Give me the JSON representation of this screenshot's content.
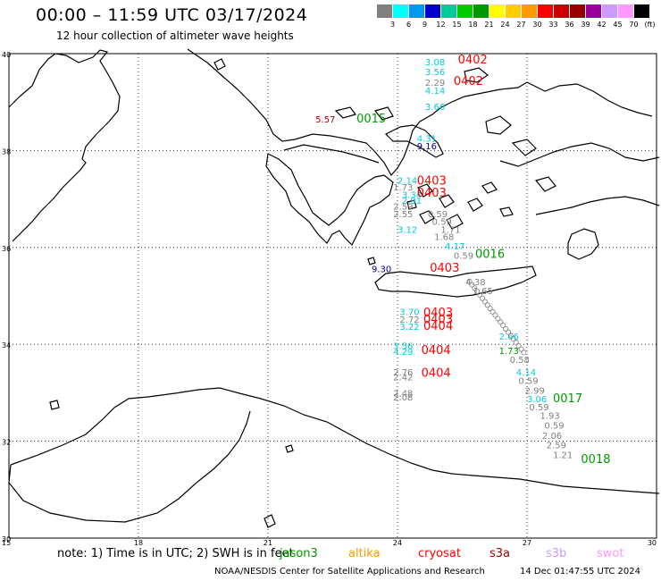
{
  "header": {
    "title": "00:00 – 11:59 UTC 03/17/2024",
    "subtitle": "12 hour collection of altimeter wave heights"
  },
  "legend": {
    "unit": "(ft)",
    "colors": [
      "#808080",
      "#00ffff",
      "#0099ee",
      "#0000cc",
      "#00cc99",
      "#00cc00",
      "#009900",
      "#ffff00",
      "#ffcc00",
      "#ff9900",
      "#ff0000",
      "#cc0000",
      "#990000",
      "#990099",
      "#cc99ff",
      "#ff99ff",
      "#000000"
    ],
    "labels": [
      "3",
      "6",
      "9",
      "12",
      "15",
      "18",
      "21",
      "24",
      "27",
      "30",
      "33",
      "36",
      "39",
      "42",
      "45",
      "70"
    ]
  },
  "axes": {
    "lat_labels": [
      "40",
      "38",
      "36",
      "34",
      "32",
      "30"
    ],
    "lon_labels": [
      "15",
      "18",
      "21",
      "24",
      "27",
      "30"
    ]
  },
  "observations": [
    {
      "t": "3.08",
      "lon": 24.64,
      "lat": 39.76,
      "c": "#00ccdd"
    },
    {
      "t": "3.56",
      "lon": 24.64,
      "lat": 39.56,
      "c": "#00ccdd"
    },
    {
      "t": "2.29",
      "lon": 24.64,
      "lat": 39.34,
      "c": "#808080"
    },
    {
      "t": "4.14",
      "lon": 24.64,
      "lat": 39.17,
      "c": "#00ccdd"
    },
    {
      "t": "3.66",
      "lon": 24.64,
      "lat": 38.84,
      "c": "#00ccdd"
    },
    {
      "t": "5.57",
      "lon": 22.1,
      "lat": 38.58,
      "c": "#990000"
    },
    {
      "t": "4.31",
      "lon": 24.45,
      "lat": 38.18,
      "c": "#00ccdd"
    },
    {
      "t": "9.16",
      "lon": 24.45,
      "lat": 38.03,
      "c": "#000099"
    },
    {
      "t": "2.14",
      "lon": 24.0,
      "lat": 37.32,
      "c": "#00ccdd"
    },
    {
      "t": "1.73",
      "lon": 23.9,
      "lat": 37.18,
      "c": "#808080"
    },
    {
      "t": "3.34",
      "lon": 24.1,
      "lat": 37.02,
      "c": "#00ccdd"
    },
    {
      "t": "2.91",
      "lon": 24.1,
      "lat": 36.9,
      "c": "#00ccdd"
    },
    {
      "t": "2.59",
      "lon": 23.9,
      "lat": 36.78,
      "c": "#808080"
    },
    {
      "t": "2.55",
      "lon": 23.9,
      "lat": 36.62,
      "c": "#808080"
    },
    {
      "t": "0.59",
      "lon": 24.7,
      "lat": 36.62,
      "c": "#808080"
    },
    {
      "t": "0.59",
      "lon": 24.8,
      "lat": 36.47,
      "c": "#808080"
    },
    {
      "t": "3.12",
      "lon": 24.0,
      "lat": 36.3,
      "c": "#00ccdd"
    },
    {
      "t": "1.71",
      "lon": 25.0,
      "lat": 36.3,
      "c": "#808080"
    },
    {
      "t": "1.68",
      "lon": 24.85,
      "lat": 36.15,
      "c": "#808080"
    },
    {
      "t": "4.17",
      "lon": 25.1,
      "lat": 35.96,
      "c": "#00ccdd"
    },
    {
      "t": "0.59",
      "lon": 25.3,
      "lat": 35.77,
      "c": "#808080"
    },
    {
      "t": "9.30",
      "lon": 23.4,
      "lat": 35.49,
      "c": "#000099"
    },
    {
      "t": "4.38",
      "lon": 25.58,
      "lat": 35.22,
      "c": "#808080"
    },
    {
      "t": "1.65",
      "lon": 25.75,
      "lat": 35.04,
      "c": "#808080"
    },
    {
      "t": "3.70",
      "lon": 24.05,
      "lat": 34.6,
      "c": "#00ccdd"
    },
    {
      "t": "2.72",
      "lon": 24.05,
      "lat": 34.45,
      "c": "#808080"
    },
    {
      "t": "3.22",
      "lon": 24.05,
      "lat": 34.3,
      "c": "#00ccdd"
    },
    {
      "t": "2.66",
      "lon": 26.35,
      "lat": 34.1,
      "c": "#00ccdd"
    },
    {
      "t": "3.56",
      "lon": 23.9,
      "lat": 33.9,
      "c": "#00ccdd"
    },
    {
      "t": "4.29",
      "lon": 23.9,
      "lat": 33.78,
      "c": "#00ccdd"
    },
    {
      "t": "1.73",
      "lon": 26.35,
      "lat": 33.8,
      "c": "#009900"
    },
    {
      "t": "0.58",
      "lon": 26.6,
      "lat": 33.62,
      "c": "#808080"
    },
    {
      "t": "4.14",
      "lon": 26.75,
      "lat": 33.36,
      "c": "#00ccdd"
    },
    {
      "t": "2.76",
      "lon": 23.9,
      "lat": 33.36,
      "c": "#808080"
    },
    {
      "t": "2.42",
      "lon": 23.9,
      "lat": 33.26,
      "c": "#808080"
    },
    {
      "t": "0.59",
      "lon": 26.8,
      "lat": 33.18,
      "c": "#808080"
    },
    {
      "t": "2.99",
      "lon": 26.95,
      "lat": 32.98,
      "c": "#808080"
    },
    {
      "t": "2.48",
      "lon": 23.9,
      "lat": 32.92,
      "c": "#808080"
    },
    {
      "t": "2.08",
      "lon": 23.9,
      "lat": 32.84,
      "c": "#808080"
    },
    {
      "t": "3.06",
      "lon": 27.0,
      "lat": 32.8,
      "c": "#00ccdd"
    },
    {
      "t": "0.59",
      "lon": 27.05,
      "lat": 32.64,
      "c": "#808080"
    },
    {
      "t": "1.93",
      "lon": 27.3,
      "lat": 32.46,
      "c": "#808080"
    },
    {
      "t": "0.59",
      "lon": 27.4,
      "lat": 32.26,
      "c": "#808080"
    },
    {
      "t": "2.06",
      "lon": 27.35,
      "lat": 32.05,
      "c": "#808080"
    },
    {
      "t": "2.59",
      "lon": 27.45,
      "lat": 31.85,
      "c": "#808080"
    },
    {
      "t": "1.21",
      "lon": 27.6,
      "lat": 31.65,
      "c": "#808080"
    }
  ],
  "pass_labels": [
    {
      "t": "0402",
      "lon": 25.4,
      "lat": 39.8,
      "c": "#ff0000"
    },
    {
      "t": "0402",
      "lon": 25.3,
      "lat": 39.35,
      "c": "#ff0000"
    },
    {
      "t": "0015",
      "lon": 23.05,
      "lat": 38.58,
      "c": "#009900"
    },
    {
      "t": "0403",
      "lon": 24.45,
      "lat": 37.3,
      "c": "#ff0000"
    },
    {
      "t": "0403",
      "lon": 24.45,
      "lat": 37.05,
      "c": "#ff0000"
    },
    {
      "t": "0016",
      "lon": 25.8,
      "lat": 35.78,
      "c": "#009900"
    },
    {
      "t": "0403",
      "lon": 24.75,
      "lat": 35.5,
      "c": "#ff0000"
    },
    {
      "t": "0403",
      "lon": 24.6,
      "lat": 34.58,
      "c": "#ff0000"
    },
    {
      "t": "0403",
      "lon": 24.6,
      "lat": 34.44,
      "c": "#ff0000"
    },
    {
      "t": "0404",
      "lon": 24.6,
      "lat": 34.3,
      "c": "#ff0000"
    },
    {
      "t": "0404",
      "lon": 24.55,
      "lat": 33.8,
      "c": "#ff0000"
    },
    {
      "t": "0404",
      "lon": 24.55,
      "lat": 33.33,
      "c": "#ff0000"
    },
    {
      "t": "0017",
      "lon": 27.6,
      "lat": 32.8,
      "c": "#009900"
    },
    {
      "t": "0018",
      "lon": 28.25,
      "lat": 31.55,
      "c": "#009900"
    }
  ],
  "note": {
    "text": "note:  1) Time is in UTC;  2) SWH is in feet",
    "satellites": [
      {
        "name": "jason3",
        "color": "#009900"
      },
      {
        "name": "altika",
        "color": "#ff9900"
      },
      {
        "name": "cryosat",
        "color": "#ff0000"
      },
      {
        "name": "s3a",
        "color": "#990000"
      },
      {
        "name": "s3b",
        "color": "#cc99ff"
      },
      {
        "name": "swot",
        "color": "#ff99ff"
      }
    ]
  },
  "footer": {
    "credit": "NOAA/NESDIS Center for Satellite Applications and Research",
    "timestamp": "14 Dec 01:47:55 UTC 2024"
  }
}
